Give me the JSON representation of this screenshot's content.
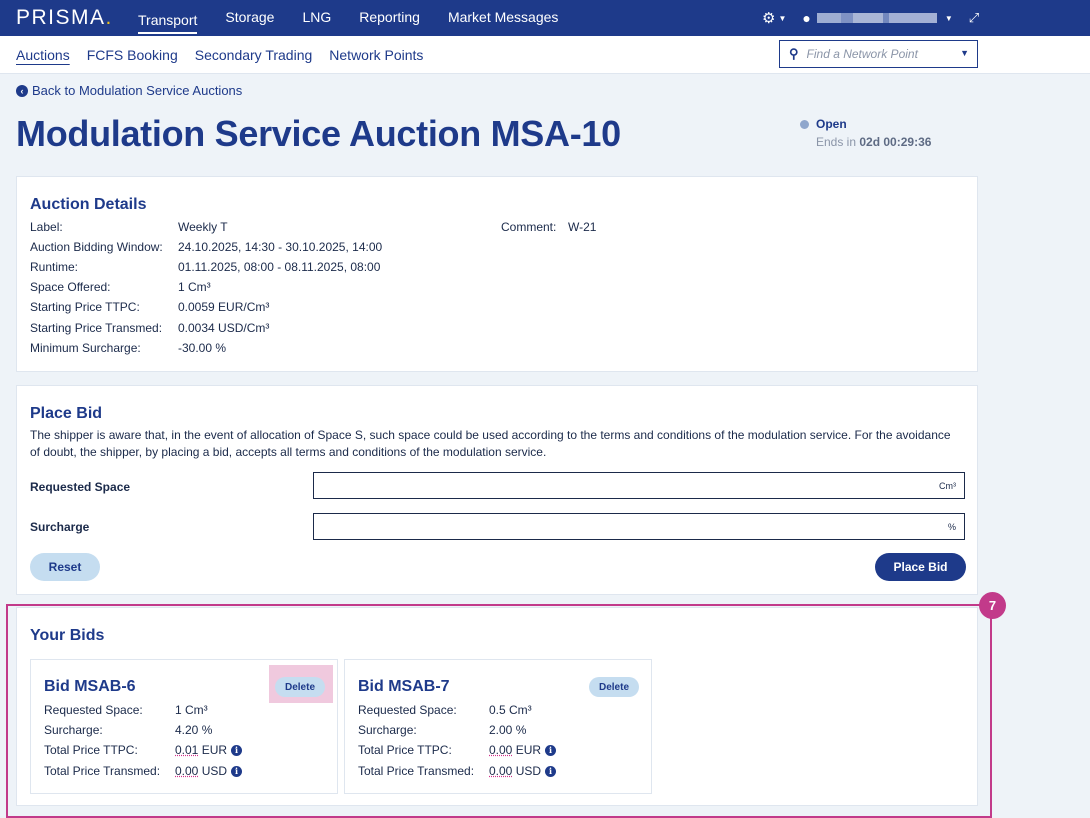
{
  "topbar": {
    "logo": "PRISMA",
    "nav": [
      "Transport",
      "Storage",
      "LNG",
      "Reporting",
      "Market Messages"
    ],
    "active": "Transport",
    "icons": [
      "gear-icon",
      "user-icon",
      "expand-icon"
    ]
  },
  "subnav": {
    "items": [
      "Auctions",
      "FCFS Booking",
      "Secondary Trading",
      "Network Points"
    ],
    "active": "Auctions",
    "search_placeholder": "Find a Network Point"
  },
  "back_link": "Back to Modulation Service Auctions",
  "page_title": "Modulation Service Auction MSA-10",
  "status": {
    "label": "Open",
    "ends_prefix": "Ends in",
    "ends_value": "02d 00:29:36"
  },
  "details": {
    "heading": "Auction Details",
    "rows": [
      {
        "label": "Label:",
        "value": "Weekly T"
      },
      {
        "label": "Auction Bidding Window:",
        "value": "24.10.2025, 14:30 - 30.10.2025, 14:00"
      },
      {
        "label": "Runtime:",
        "value": "01.11.2025, 08:00 - 08.11.2025, 08:00"
      },
      {
        "label": "Space Offered:",
        "value": "1 Cm³"
      },
      {
        "label": "Starting Price TTPC:",
        "value": "0.0059 EUR/Cm³"
      },
      {
        "label": "Starting Price Transmed:",
        "value": "0.0034 USD/Cm³"
      },
      {
        "label": "Minimum Surcharge:",
        "value": "-30.00 %"
      }
    ],
    "comment_label": "Comment:",
    "comment_value": "W-21"
  },
  "place_bid": {
    "heading": "Place Bid",
    "description": "The shipper is aware that, in the event of allocation of Space S, such space could be used according to the terms and conditions of the modulation service. For the avoidance of doubt, the shipper, by placing a bid, accepts all terms and conditions of the modulation service.",
    "requested_space_label": "Requested Space",
    "requested_space_value": "",
    "requested_space_unit": "Cm³",
    "surcharge_label": "Surcharge",
    "surcharge_value": "",
    "surcharge_unit": "%",
    "reset_label": "Reset",
    "place_label": "Place Bid"
  },
  "your_bids": {
    "heading": "Your Bids",
    "bids": [
      {
        "title": "Bid MSAB-6",
        "delete_label": "Delete",
        "rows": [
          {
            "label": "Requested Space:",
            "value": "1 Cm³"
          },
          {
            "label": "Surcharge:",
            "value": "4.20 %"
          },
          {
            "label": "Total Price TTPC:",
            "amount": "0.01",
            "currency": "EUR"
          },
          {
            "label": "Total Price Transmed:",
            "amount": "0.00",
            "currency": "USD"
          }
        ]
      },
      {
        "title": "Bid MSAB-7",
        "delete_label": "Delete",
        "rows": [
          {
            "label": "Requested Space:",
            "value": "0.5 Cm³"
          },
          {
            "label": "Surcharge:",
            "value": "2.00 %"
          },
          {
            "label": "Total Price TTPC:",
            "amount": "0.00",
            "currency": "EUR"
          },
          {
            "label": "Total Price Transmed:",
            "amount": "0.00",
            "currency": "USD"
          }
        ]
      }
    ]
  },
  "annotation": {
    "number": "7",
    "color": "#c23a8a"
  },
  "colors": {
    "brand": "#1e3a8a",
    "accent_light": "#c5ddf0",
    "logo_dot": "#f0c419"
  }
}
